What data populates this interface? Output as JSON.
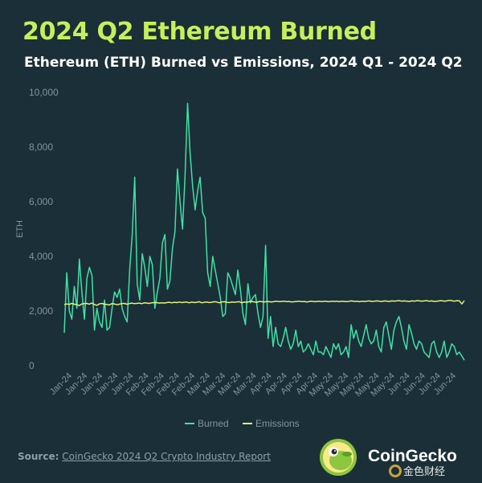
{
  "header": {
    "title": "2024 Q2 Ethereum Burned",
    "subtitle": "Ethereum (ETH) Burned vs Emissions, 2024 Q1 - 2024 Q2"
  },
  "source": {
    "label": "Source:",
    "link_text": "CoinGecko 2024 Q2 Crypto Industry Report"
  },
  "brand": {
    "name": "CoinGecko",
    "watermark": "金色财经"
  },
  "colors": {
    "background": "#1b2f38",
    "title": "#c7ef5c",
    "burned": "#3fe0a6",
    "emissions": "#e3f27a",
    "axis_text": "#7f959c"
  },
  "chart_data": {
    "type": "line",
    "ylabel": "ETH",
    "ylim": [
      0,
      10000
    ],
    "yticks": [
      0,
      2000,
      4000,
      6000,
      8000,
      10000
    ],
    "ytick_labels": [
      "0",
      "2,000",
      "4,000",
      "6,000",
      "8,000",
      "10,000"
    ],
    "xtick_labels": [
      "Jan-24",
      "Jan-24",
      "Jan-24",
      "Jan-24",
      "Jan-24",
      "Feb-24",
      "Feb-24",
      "Feb-24",
      "Feb-24",
      "Mar-24",
      "Mar-24",
      "Mar-24",
      "Mar-24",
      "Apr-24",
      "Apr-24",
      "Apr-24",
      "Apr-24",
      "May-24",
      "May-24",
      "May-24",
      "May-24",
      "May-24",
      "Jun-24",
      "Jun-24",
      "Jun-24",
      "Jun-24"
    ],
    "legend_position": "bottom",
    "series": [
      {
        "name": "Burned",
        "color": "#3fe0a6",
        "values": [
          1200,
          3400,
          2000,
          1700,
          2900,
          2100,
          3900,
          2700,
          1700,
          3200,
          3600,
          3300,
          1300,
          2100,
          1600,
          1400,
          2400,
          1300,
          1400,
          2100,
          2700,
          2500,
          2800,
          2100,
          1800,
          1600,
          3500,
          4800,
          6900,
          3000,
          2400,
          4100,
          3600,
          2900,
          4000,
          3700,
          2100,
          2700,
          3200,
          4500,
          4800,
          2800,
          3100,
          4300,
          4900,
          7200,
          6000,
          5000,
          6900,
          9600,
          7800,
          6600,
          5700,
          6400,
          6900,
          5600,
          5400,
          3400,
          2900,
          4000,
          3500,
          3000,
          2500,
          1800,
          1900,
          3400,
          3200,
          2900,
          2600,
          3500,
          2800,
          1900,
          1500,
          3000,
          2300,
          2500,
          2600,
          1900,
          1400,
          1800,
          4400,
          1000,
          1800,
          700,
          1400,
          800,
          700,
          1000,
          1400,
          900,
          600,
          800,
          1300,
          700,
          900,
          500,
          600,
          800,
          600,
          400,
          900,
          500,
          500,
          400,
          700,
          500,
          300,
          800,
          600,
          800,
          400,
          500,
          700,
          300,
          1500,
          1000,
          1300,
          900,
          700,
          1100,
          1500,
          1000,
          800,
          900,
          1300,
          700,
          500,
          1400,
          1600,
          1100,
          600,
          1300,
          1600,
          1800,
          1400,
          900,
          600,
          1500,
          1200,
          800,
          600,
          900,
          800,
          500,
          400,
          300,
          800,
          900,
          500,
          300,
          500,
          900,
          300,
          500,
          800,
          700,
          400,
          500,
          350,
          200
        ]
      },
      {
        "name": "Emissions",
        "color": "#e3f27a",
        "values": [
          2230,
          2260,
          2240,
          2280,
          2250,
          2230,
          2200,
          2260,
          2270,
          2280,
          2250,
          2290,
          2240,
          2210,
          2260,
          2280,
          2250,
          2240,
          2220,
          2270,
          2260,
          2230,
          2250,
          2270,
          2280,
          2250,
          2270,
          2290,
          2270,
          2280,
          2290,
          2270,
          2300,
          2290,
          2280,
          2300,
          2310,
          2310,
          2290,
          2300,
          2290,
          2310,
          2320,
          2300,
          2320,
          2310,
          2330,
          2310,
          2320,
          2330,
          2300,
          2330,
          2310,
          2320,
          2340,
          2300,
          2320,
          2330,
          2310,
          2320,
          2340,
          2330,
          2300,
          2330,
          2340,
          2320,
          2310,
          2330,
          2320,
          2330,
          2340,
          2300,
          2330,
          2320,
          2340,
          2350,
          2330,
          2320,
          2350,
          2340,
          2330,
          2350,
          2340,
          2330,
          2350,
          2360,
          2340,
          2350,
          2360,
          2340,
          2350,
          2330,
          2340,
          2350,
          2360,
          2340,
          2350,
          2330,
          2350,
          2360,
          2340,
          2350,
          2360,
          2340,
          2360,
          2350,
          2340,
          2360,
          2350,
          2360,
          2340,
          2360,
          2350,
          2340,
          2360,
          2370,
          2350,
          2360,
          2340,
          2360,
          2350,
          2360,
          2370,
          2350,
          2360,
          2370,
          2360,
          2350,
          2370,
          2360,
          2350,
          2370,
          2360,
          2370,
          2380,
          2360,
          2370,
          2360,
          2350,
          2370,
          2360,
          2380,
          2370,
          2360,
          2370,
          2380,
          2360,
          2370,
          2350,
          2360,
          2370,
          2380,
          2360,
          2370,
          2390,
          2380,
          2360,
          2380,
          2370,
          2260,
          2380
        ]
      }
    ]
  }
}
